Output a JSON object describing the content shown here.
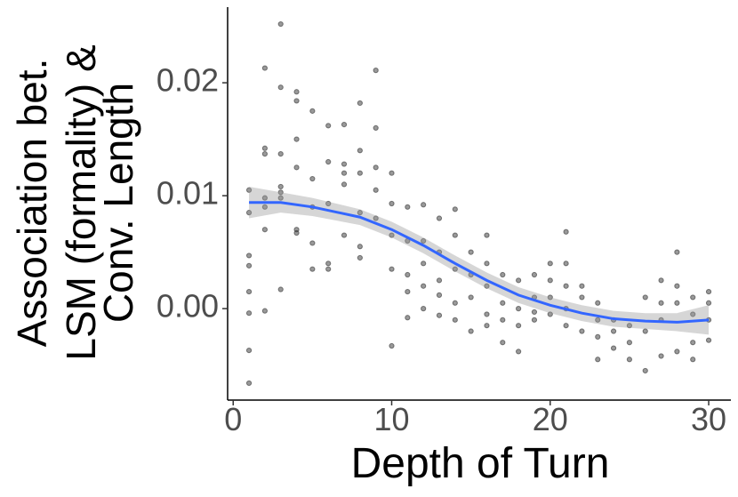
{
  "chart_data": {
    "type": "scatter",
    "x_label": "Depth of Turn",
    "y_label": [
      "Association bet.",
      "LSM (formality)  &",
      "Conv. Length"
    ],
    "xlim": [
      -0.35,
      31.4
    ],
    "ylim": [
      -0.0081,
      0.0267
    ],
    "xticks": [
      0,
      10,
      20,
      30
    ],
    "yticks": [
      {
        "value": 0,
        "label": "0.00"
      },
      {
        "value": 0.01,
        "label": "0.01"
      },
      {
        "value": 0.02,
        "label": "0.02"
      }
    ],
    "points": {
      "color": "#333333",
      "x": [
        1,
        1,
        1,
        1,
        1,
        1,
        1,
        1,
        2,
        2,
        2,
        2,
        2,
        2,
        2,
        3,
        3,
        3,
        3,
        3,
        3,
        3,
        4,
        4,
        4,
        4,
        4,
        4,
        5,
        5,
        5,
        5,
        5,
        6,
        6,
        6,
        6,
        6,
        7,
        7,
        7,
        7,
        7,
        8,
        8,
        8,
        8,
        8,
        8,
        9,
        9,
        9,
        9,
        9,
        10,
        10,
        10,
        10,
        10,
        11,
        11,
        11,
        11,
        11,
        12,
        12,
        12,
        12,
        12,
        13,
        13,
        13,
        13,
        13,
        14,
        14,
        14,
        14,
        14,
        15,
        15,
        15,
        15,
        16,
        16,
        16,
        16,
        16,
        17,
        17,
        17,
        17,
        18,
        18,
        18,
        18,
        19,
        19,
        19,
        19,
        20,
        20,
        20,
        20,
        21,
        21,
        21,
        21,
        21,
        22,
        22,
        22,
        23,
        23,
        23,
        23,
        24,
        24,
        24,
        25,
        25,
        25,
        26,
        26,
        26,
        27,
        27,
        27,
        27,
        28,
        28,
        28,
        28,
        29,
        29,
        29,
        29,
        30,
        30,
        30,
        30
      ],
      "y": [
        0.0105,
        0.0085,
        0.0047,
        0.0038,
        0.0015,
        -0.0004,
        -0.0037,
        -0.0066,
        0.0213,
        0.0142,
        0.0137,
        0.0098,
        0.009,
        0.007,
        -0.0002,
        0.0252,
        0.0196,
        0.0137,
        0.0108,
        0.0103,
        0.0098,
        0.0017,
        0.0192,
        0.0184,
        0.015,
        0.0125,
        0.007,
        0.0067,
        0.0175,
        0.0115,
        0.009,
        0.0058,
        0.0035,
        0.0162,
        0.013,
        0.0093,
        0.004,
        0.0035,
        0.0163,
        0.0128,
        0.012,
        0.011,
        0.0065,
        0.0182,
        0.014,
        0.012,
        0.0085,
        0.0055,
        0.0045,
        0.0211,
        0.016,
        0.0125,
        0.0105,
        0.008,
        0.012,
        0.0093,
        0.0065,
        0.0035,
        -0.0033,
        0.009,
        0.006,
        0.003,
        0.0015,
        -0.0008,
        0.0092,
        0.006,
        0.004,
        0.002,
        0.0,
        0.008,
        0.005,
        0.0025,
        0.0012,
        -0.0006,
        0.0088,
        0.0065,
        0.0035,
        0.0005,
        -0.001,
        0.005,
        0.003,
        0.001,
        -0.002,
        0.0065,
        0.004,
        0.002,
        -0.0005,
        -0.0015,
        0.003,
        0.0005,
        -0.001,
        -0.003,
        0.0025,
        0.0,
        -0.0015,
        -0.0038,
        0.003,
        0.001,
        -0.0003,
        -0.001,
        0.004,
        0.0025,
        0.001,
        -0.0005,
        0.0068,
        0.004,
        0.002,
        0.0,
        -0.0015,
        0.002,
        0.001,
        -0.002,
        0.0005,
        -0.001,
        -0.0025,
        -0.0045,
        -0.001,
        -0.002,
        -0.0035,
        -0.0015,
        -0.003,
        -0.0045,
        0.001,
        -0.002,
        -0.0055,
        0.0025,
        0.0005,
        -0.001,
        -0.0042,
        0.005,
        0.002,
        0.0005,
        -0.0038,
        0.001,
        -0.0005,
        -0.003,
        -0.0045,
        0.0015,
        0.0005,
        -0.001,
        -0.0028
      ]
    },
    "fit": {
      "color": "#3366ff",
      "band_color": "#999999",
      "x": [
        1,
        3,
        5,
        8,
        10,
        12,
        14,
        16,
        18,
        20,
        22,
        24,
        26,
        28,
        30
      ],
      "y": [
        0.0094,
        0.0094,
        0.009,
        0.0081,
        0.007,
        0.0056,
        0.004,
        0.0025,
        0.0012,
        0.0003,
        -0.0004,
        -0.0009,
        -0.0011,
        -0.0012,
        -0.001
      ],
      "lower": [
        0.008,
        0.0085,
        0.0082,
        0.0074,
        0.0063,
        0.0049,
        0.0033,
        0.0018,
        0.0005,
        -0.0004,
        -0.0011,
        -0.0016,
        -0.0018,
        -0.002,
        -0.0023
      ],
      "upper": [
        0.0108,
        0.0103,
        0.0098,
        0.0088,
        0.0077,
        0.0063,
        0.0047,
        0.0032,
        0.0019,
        0.001,
        0.0003,
        -0.0002,
        -0.0004,
        -0.0004,
        0.0003
      ]
    }
  }
}
